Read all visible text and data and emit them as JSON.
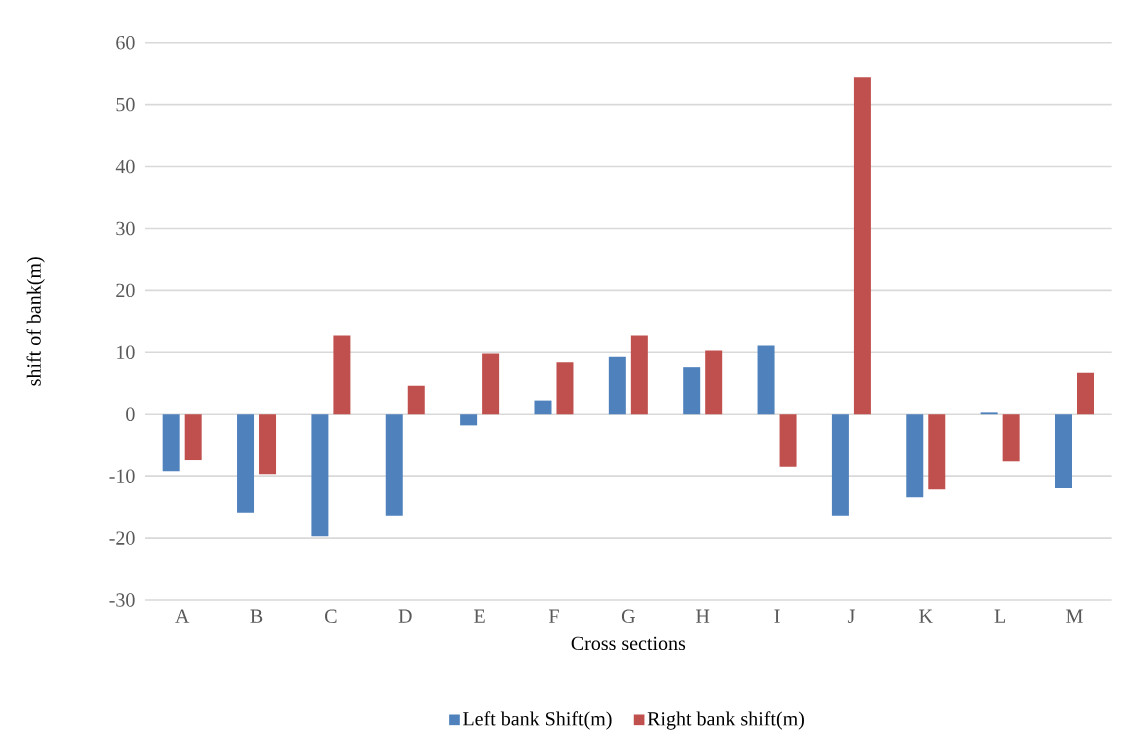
{
  "chart_data": {
    "type": "bar",
    "xlabel": "Cross sections",
    "ylabel": "shift of bank(m)",
    "categories": [
      "A",
      "B",
      "C",
      "D",
      "E",
      "F",
      "G",
      "H",
      "I",
      "J",
      "K",
      "L",
      "M"
    ],
    "series": [
      {
        "name": "Left bank Shift(m)",
        "color": "#4f81bd",
        "values": [
          -9.2,
          -15.9,
          -19.7,
          -16.4,
          -1.8,
          2.2,
          9.3,
          7.6,
          11.1,
          -16.4,
          -13.4,
          0.3,
          -11.9
        ]
      },
      {
        "name": "Right bank shift(m)",
        "color": "#c0504d",
        "values": [
          -7.4,
          -9.7,
          12.7,
          4.6,
          9.8,
          8.4,
          12.7,
          10.3,
          -8.5,
          54.4,
          -12.1,
          -7.6,
          6.7
        ]
      }
    ],
    "ylim": [
      -30,
      60
    ],
    "yticks": [
      -30,
      -20,
      -10,
      0,
      10,
      20,
      30,
      40,
      50,
      60
    ],
    "grid": "y",
    "legend": "bottom"
  }
}
